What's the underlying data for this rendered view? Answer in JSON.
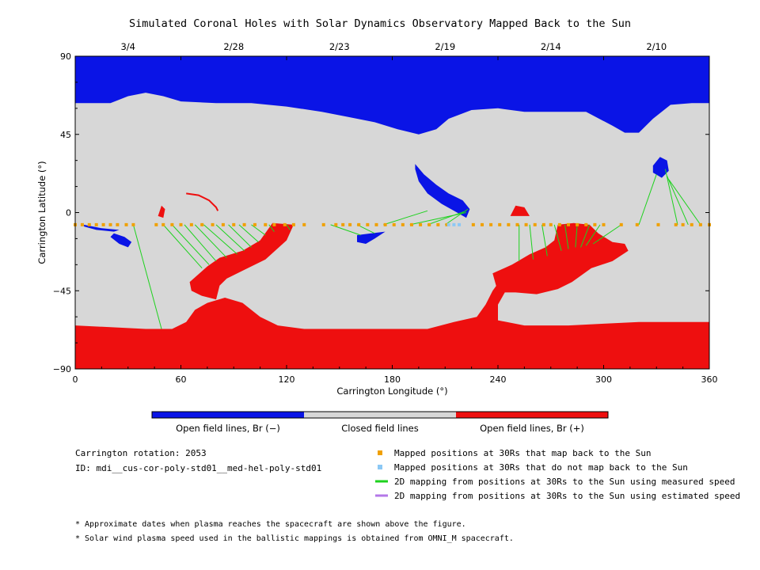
{
  "title": "Simulated Coronal Holes with Solar Dynamics Observatory Mapped Back to the Sun",
  "colors": {
    "closed": "#d7d7d7",
    "open_negative": "#0a14e6",
    "open_positive": "#ee0f0f",
    "mapped": "#f0a000",
    "unmapped": "#8cc8f5",
    "measured": "#1ed21e",
    "estimated": "#b478e8"
  },
  "chart_data": {
    "type": "map",
    "title": "Simulated Coronal Holes with Solar Dynamics Observatory Mapped Back to the Sun",
    "xlabel": "Carrington Longitude (°)",
    "ylabel": "Carrington Latitude (°)",
    "xlim": [
      0,
      360
    ],
    "ylim": [
      -90,
      90
    ],
    "x_ticks": [
      0,
      60,
      120,
      180,
      240,
      300,
      360
    ],
    "y_ticks": [
      90,
      45,
      0,
      -45,
      -90
    ],
    "y_tick_labels": [
      "90",
      "45",
      "0",
      "−45",
      "−90"
    ],
    "top_dates": [
      {
        "label": "3/4",
        "lon": 30
      },
      {
        "label": "2/28",
        "lon": 90
      },
      {
        "label": "2/23",
        "lon": 150
      },
      {
        "label": "2/19",
        "lon": 210
      },
      {
        "label": "2/14",
        "lon": 270
      },
      {
        "label": "2/10",
        "lon": 330
      }
    ],
    "north_boundary": [
      [
        0,
        63
      ],
      [
        20,
        63
      ],
      [
        30,
        67
      ],
      [
        40,
        69
      ],
      [
        50,
        67
      ],
      [
        60,
        64
      ],
      [
        80,
        63
      ],
      [
        100,
        63
      ],
      [
        120,
        61
      ],
      [
        140,
        58
      ],
      [
        155,
        55
      ],
      [
        170,
        52
      ],
      [
        183,
        48
      ],
      [
        195,
        45
      ],
      [
        205,
        48
      ],
      [
        212,
        54
      ],
      [
        225,
        59
      ],
      [
        240,
        60
      ],
      [
        255,
        58
      ],
      [
        270,
        58
      ],
      [
        290,
        58
      ],
      [
        305,
        50
      ],
      [
        312,
        46
      ],
      [
        320,
        46
      ],
      [
        328,
        54
      ],
      [
        338,
        62
      ],
      [
        350,
        63
      ],
      [
        360,
        63
      ]
    ],
    "south_boundary": [
      [
        0,
        -65
      ],
      [
        20,
        -66
      ],
      [
        40,
        -67
      ],
      [
        55,
        -67
      ],
      [
        63,
        -63
      ],
      [
        68,
        -56
      ],
      [
        75,
        -52
      ],
      [
        85,
        -49
      ],
      [
        95,
        -52
      ],
      [
        105,
        -60
      ],
      [
        115,
        -65
      ],
      [
        130,
        -67
      ],
      [
        160,
        -67
      ],
      [
        185,
        -67
      ],
      [
        200,
        -67
      ],
      [
        215,
        -63
      ],
      [
        228,
        -60
      ],
      [
        233,
        -53
      ],
      [
        237,
        -45
      ],
      [
        242,
        -38
      ],
      [
        250,
        -37
      ],
      [
        255,
        -40
      ],
      [
        245,
        -44
      ],
      [
        240,
        -53
      ],
      [
        240,
        -62
      ],
      [
        255,
        -65
      ],
      [
        280,
        -65
      ],
      [
        300,
        -64
      ],
      [
        320,
        -63
      ],
      [
        340,
        -63
      ],
      [
        360,
        -63
      ]
    ],
    "south_hole_A": [
      [
        65,
        -40
      ],
      [
        75,
        -31
      ],
      [
        82,
        -26
      ],
      [
        95,
        -22
      ],
      [
        105,
        -16
      ],
      [
        112,
        -6
      ],
      [
        124,
        -7
      ],
      [
        120,
        -16
      ],
      [
        108,
        -27
      ],
      [
        96,
        -33
      ],
      [
        86,
        -38
      ],
      [
        82,
        -42
      ],
      [
        80,
        -50
      ],
      [
        72,
        -48
      ],
      [
        66,
        -45
      ]
    ],
    "south_hole_B": [
      [
        237,
        -35
      ],
      [
        248,
        -30
      ],
      [
        258,
        -24
      ],
      [
        267,
        -20
      ],
      [
        272,
        -16
      ],
      [
        274,
        -7
      ],
      [
        283,
        -6
      ],
      [
        292,
        -7
      ],
      [
        297,
        -12
      ],
      [
        305,
        -17
      ],
      [
        312,
        -18
      ],
      [
        314,
        -22
      ],
      [
        305,
        -28
      ],
      [
        293,
        -32
      ],
      [
        282,
        -40
      ],
      [
        274,
        -44
      ],
      [
        262,
        -47
      ],
      [
        250,
        -46
      ],
      [
        240,
        -46
      ]
    ],
    "north_hole_B": [
      [
        193,
        28
      ],
      [
        198,
        22
      ],
      [
        205,
        16
      ],
      [
        212,
        11
      ],
      [
        220,
        7
      ],
      [
        224,
        2
      ],
      [
        222,
        -3
      ],
      [
        215,
        1
      ],
      [
        208,
        5
      ],
      [
        200,
        11
      ],
      [
        195,
        18
      ],
      [
        193,
        25
      ]
    ],
    "north_hole_C": [
      [
        328,
        27
      ],
      [
        332,
        32
      ],
      [
        336,
        30
      ],
      [
        337,
        24
      ],
      [
        333,
        20
      ],
      [
        328,
        23
      ]
    ],
    "south_hole_small_1": [
      [
        22,
        -12
      ],
      [
        28,
        -14
      ],
      [
        32,
        -17
      ],
      [
        30,
        -20
      ],
      [
        25,
        -18
      ],
      [
        20,
        -14
      ]
    ],
    "south_hole_small_2": [
      [
        160,
        -13
      ],
      [
        168,
        -12
      ],
      [
        176,
        -11
      ],
      [
        170,
        -15
      ],
      [
        165,
        -18
      ],
      [
        160,
        -17
      ]
    ],
    "south_hole_edge": [
      [
        5,
        -7
      ],
      [
        15,
        -9
      ],
      [
        25,
        -10
      ],
      [
        22,
        -11
      ],
      [
        12,
        -10
      ],
      [
        5,
        -8
      ]
    ],
    "red_patch_1": [
      [
        47,
        -2
      ],
      [
        49,
        4
      ],
      [
        51,
        2
      ],
      [
        50,
        -3
      ]
    ],
    "red_patch_2": [
      [
        247,
        -2
      ],
      [
        250,
        4
      ],
      [
        255,
        3
      ],
      [
        258,
        -2
      ]
    ],
    "red_arc": [
      [
        63,
        11
      ],
      [
        70,
        10
      ],
      [
        76,
        7
      ],
      [
        80,
        3
      ],
      [
        81,
        1
      ]
    ],
    "measured_lines": [
      [
        [
          33,
          -7
        ],
        [
          49,
          -67
        ]
      ],
      [
        [
          50,
          -7
        ],
        [
          72,
          -32
        ]
      ],
      [
        [
          55,
          -7
        ],
        [
          76,
          -30
        ]
      ],
      [
        [
          62,
          -7
        ],
        [
          80,
          -28
        ]
      ],
      [
        [
          68,
          -7
        ],
        [
          86,
          -26
        ]
      ],
      [
        [
          73,
          -7
        ],
        [
          92,
          -24
        ]
      ],
      [
        [
          80,
          -7
        ],
        [
          96,
          -22
        ]
      ],
      [
        [
          87,
          -7
        ],
        [
          100,
          -20
        ]
      ],
      [
        [
          93,
          -7
        ],
        [
          104,
          -17
        ]
      ],
      [
        [
          100,
          -7
        ],
        [
          108,
          -13
        ]
      ],
      [
        [
          110,
          -7
        ],
        [
          113,
          -11
        ]
      ],
      [
        [
          120,
          -7
        ],
        [
          122,
          -10
        ]
      ],
      [
        [
          145,
          -7
        ],
        [
          162,
          -13
        ]
      ],
      [
        [
          160,
          -7
        ],
        [
          170,
          -12
        ]
      ],
      [
        [
          175,
          -7
        ],
        [
          200,
          1
        ]
      ],
      [
        [
          190,
          -7
        ],
        [
          222,
          0
        ]
      ],
      [
        [
          200,
          -7
        ],
        [
          222,
          1
        ]
      ],
      [
        [
          210,
          -7
        ],
        [
          223,
          2
        ]
      ],
      [
        [
          252,
          -7
        ],
        [
          252,
          -28
        ]
      ],
      [
        [
          258,
          -7
        ],
        [
          260,
          -27
        ]
      ],
      [
        [
          265,
          -7
        ],
        [
          268,
          -25
        ]
      ],
      [
        [
          272,
          -7
        ],
        [
          276,
          -22
        ]
      ],
      [
        [
          278,
          -7
        ],
        [
          280,
          -21
        ]
      ],
      [
        [
          285,
          -7
        ],
        [
          284,
          -20
        ]
      ],
      [
        [
          292,
          -7
        ],
        [
          287,
          -20
        ]
      ],
      [
        [
          298,
          -7
        ],
        [
          290,
          -19
        ]
      ],
      [
        [
          310,
          -7
        ],
        [
          294,
          -18
        ]
      ],
      [
        [
          320,
          -7
        ],
        [
          330,
          22
        ]
      ],
      [
        [
          342,
          -7
        ],
        [
          335,
          25
        ]
      ],
      [
        [
          348,
          -7
        ],
        [
          336,
          21
        ]
      ],
      [
        [
          355,
          -7
        ],
        [
          337,
          19
        ]
      ]
    ],
    "mapped_positions": [
      [
        0,
        -7
      ],
      [
        4,
        -7
      ],
      [
        8,
        -7
      ],
      [
        12,
        -7
      ],
      [
        16,
        -7
      ],
      [
        20,
        -7
      ],
      [
        24,
        -7
      ],
      [
        29,
        -7
      ],
      [
        33,
        -7
      ],
      [
        46,
        -7
      ],
      [
        50,
        -7
      ],
      [
        55,
        -7
      ],
      [
        60,
        -7
      ],
      [
        66,
        -7
      ],
      [
        72,
        -7
      ],
      [
        78,
        -7
      ],
      [
        84,
        -7
      ],
      [
        90,
        -7
      ],
      [
        96,
        -7
      ],
      [
        102,
        -7
      ],
      [
        108,
        -7
      ],
      [
        113,
        -7
      ],
      [
        119,
        -7
      ],
      [
        124,
        -7
      ],
      [
        130,
        -7
      ],
      [
        141,
        -7
      ],
      [
        148,
        -7
      ],
      [
        152,
        -7
      ],
      [
        156,
        -7
      ],
      [
        161,
        -7
      ],
      [
        166,
        -7
      ],
      [
        171,
        -7
      ],
      [
        176,
        -7
      ],
      [
        181,
        -7
      ],
      [
        186,
        -7
      ],
      [
        191,
        -7
      ],
      [
        196,
        -7
      ],
      [
        201,
        -7
      ],
      [
        206,
        -7
      ],
      [
        211,
        -7
      ],
      [
        226,
        -7
      ],
      [
        231,
        -7
      ],
      [
        236,
        -7
      ],
      [
        241,
        -7
      ],
      [
        246,
        -7
      ],
      [
        251,
        -7
      ],
      [
        256,
        -7
      ],
      [
        261,
        -7
      ],
      [
        266,
        -7
      ],
      [
        270,
        -7
      ],
      [
        275,
        -7
      ],
      [
        280,
        -7
      ],
      [
        285,
        -7
      ],
      [
        290,
        -7
      ],
      [
        295,
        -7
      ],
      [
        300,
        -7
      ],
      [
        310,
        -7
      ],
      [
        319,
        -7
      ],
      [
        331,
        -7
      ],
      [
        341,
        -7
      ],
      [
        345,
        -7
      ],
      [
        350,
        -7
      ],
      [
        355,
        -7
      ],
      [
        360,
        -7
      ]
    ],
    "unmapped_positions": [
      [
        212,
        -7
      ],
      [
        215,
        -7
      ],
      [
        218,
        -7
      ]
    ]
  },
  "colorbar": {
    "labels": [
      "Open field lines, Br (−)",
      "Closed field lines",
      "Open field lines, Br (+)"
    ]
  },
  "info": {
    "rotation": "Carrington rotation: 2053",
    "id": "ID: mdi__cus-cor-poly-std01__med-hel-poly-std01"
  },
  "legend": {
    "mapped": "Mapped positions at 30Rs that map back to the Sun",
    "unmapped": "Mapped positions at 30Rs that do not map back to the Sun",
    "measured": "2D mapping from positions at 30Rs to the Sun using measured speed",
    "estimated": "2D mapping from positions at 30Rs to the Sun using estimated speed"
  },
  "notes": {
    "note1": "* Approximate dates when plasma reaches the spacecraft are shown above the figure.",
    "note2": "* Solar wind plasma speed used in the ballistic mappings is obtained from OMNI_M spacecraft."
  }
}
